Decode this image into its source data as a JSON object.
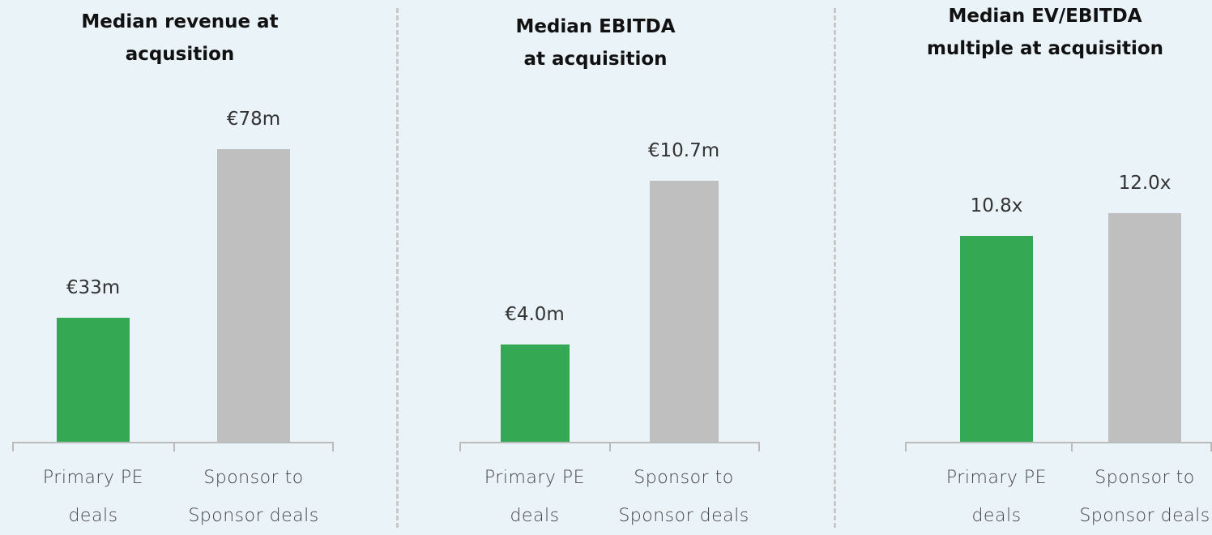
{
  "chart_data": [
    {
      "type": "bar",
      "title": "Median revenue at\nacqusition",
      "categories": [
        "Primary PE\ndeals",
        "Sponsor to\nSponsor deals"
      ],
      "values": [
        33,
        78
      ],
      "value_labels": [
        "€33m",
        "€78m"
      ],
      "colors": [
        "#34a853",
        "#bfbfbf"
      ]
    },
    {
      "type": "bar",
      "title": "Median EBITDA\nat acquisition",
      "categories": [
        "Primary PE\ndeals",
        "Sponsor to\nSponsor deals"
      ],
      "values": [
        4.0,
        10.7
      ],
      "value_labels": [
        "€4.0m",
        "€10.7m"
      ],
      "colors": [
        "#34a853",
        "#bfbfbf"
      ]
    },
    {
      "type": "bar",
      "title": "Median EV/EBITDA\nmultiple at acquisition",
      "categories": [
        "Primary PE\ndeals",
        "Sponsor to\nSponsor deals"
      ],
      "values": [
        10.8,
        12.0
      ],
      "value_labels": [
        "10.8x",
        "12.0x"
      ],
      "colors": [
        "#34a853",
        "#bfbfbf"
      ]
    }
  ]
}
